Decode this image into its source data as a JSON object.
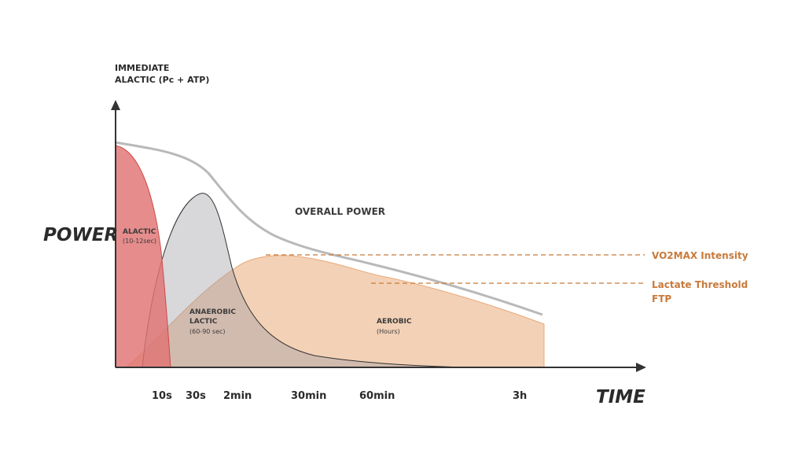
{
  "axis": {
    "y_label_top_line1": "IMMEDIATE",
    "y_label_top_line2": "ALACTIC (Pc + ATP)",
    "y_label": "POWER",
    "x_label": "TIME",
    "ticks": [
      "10s",
      "30s",
      "2min",
      "30min",
      "60min",
      "3h"
    ]
  },
  "curves": {
    "overall": "OVERALL POWER",
    "alactic_title": "ALACTIC",
    "alactic_sub": "(10-12sec)",
    "anaerobic_title_line1": "ANAEROBIC",
    "anaerobic_title_line2": "LACTIC",
    "anaerobic_sub": "(60-90 sec)",
    "aerobic_title": "AEROBIC",
    "aerobic_sub": "(Hours)"
  },
  "thresholds": {
    "vo2max": "VO2MAX Intensity",
    "lactate_line1": "Lactate Threshold",
    "lactate_line2": "FTP"
  },
  "colors": {
    "alactic": "#e07373",
    "anaerobic": "#c8c4c8",
    "aerobic": "#f0c5a4",
    "overall": "#b9b9b9",
    "threshold": "#c87a3a",
    "axis": "#333333"
  }
}
